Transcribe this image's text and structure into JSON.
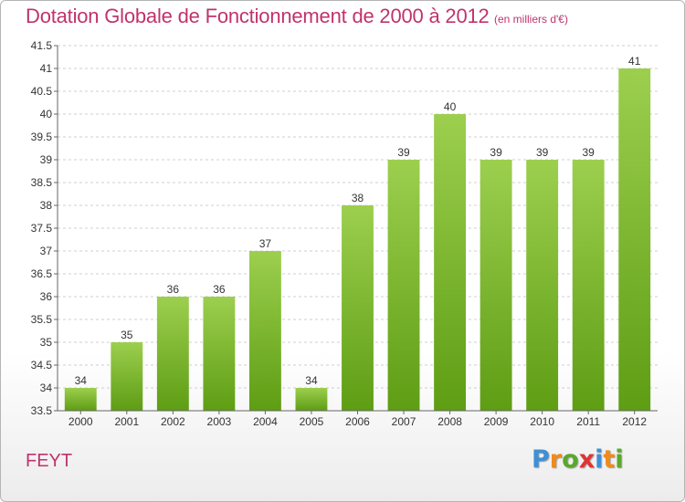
{
  "header": {
    "title": "Dotation Globale de Fonctionnement de 2000 à 2012",
    "unit": "(en milliers d'€)"
  },
  "footer": {
    "commune": "FEYT",
    "logo": {
      "letters": [
        "P",
        "r",
        "o",
        "x",
        "i",
        "t",
        "i"
      ],
      "text": "Proxiti"
    }
  },
  "colors": {
    "title": "#c0336c",
    "bar_top": "#9ccf4e",
    "bar_bottom": "#5e9d14",
    "logo": [
      "#3f8fd6",
      "#f08a1c",
      "#5aa82c",
      "#e03434",
      "#3f8fd6",
      "#f08a1c",
      "#5aa82c"
    ]
  },
  "chart_data": {
    "type": "bar",
    "title": "Dotation Globale de Fonctionnement de 2000 à 2012",
    "subtitle": "(en milliers d'€)",
    "categories": [
      "2000",
      "2001",
      "2002",
      "2003",
      "2004",
      "2005",
      "2006",
      "2007",
      "2008",
      "2009",
      "2010",
      "2011",
      "2012"
    ],
    "values": [
      34,
      35,
      36,
      36,
      37,
      34,
      38,
      39,
      40,
      39,
      39,
      39,
      41
    ],
    "data_labels": [
      "34",
      "35",
      "36",
      "36",
      "37",
      "34",
      "38",
      "39",
      "40",
      "39",
      "39",
      "39",
      "41"
    ],
    "ylim": [
      33.5,
      41.5
    ],
    "yticks": [
      33.5,
      34,
      34.5,
      35,
      35.5,
      36,
      36.5,
      37,
      37.5,
      38,
      38.5,
      39,
      39.5,
      40,
      40.5,
      41,
      41.5
    ],
    "ytick_labels": [
      "33.5",
      "34",
      "34.5",
      "35",
      "35.5",
      "36",
      "36.5",
      "37",
      "37.5",
      "38",
      "38.5",
      "39",
      "39.5",
      "40",
      "40.5",
      "41",
      "41.5"
    ],
    "grid": true,
    "xlabel": "",
    "ylabel": ""
  }
}
